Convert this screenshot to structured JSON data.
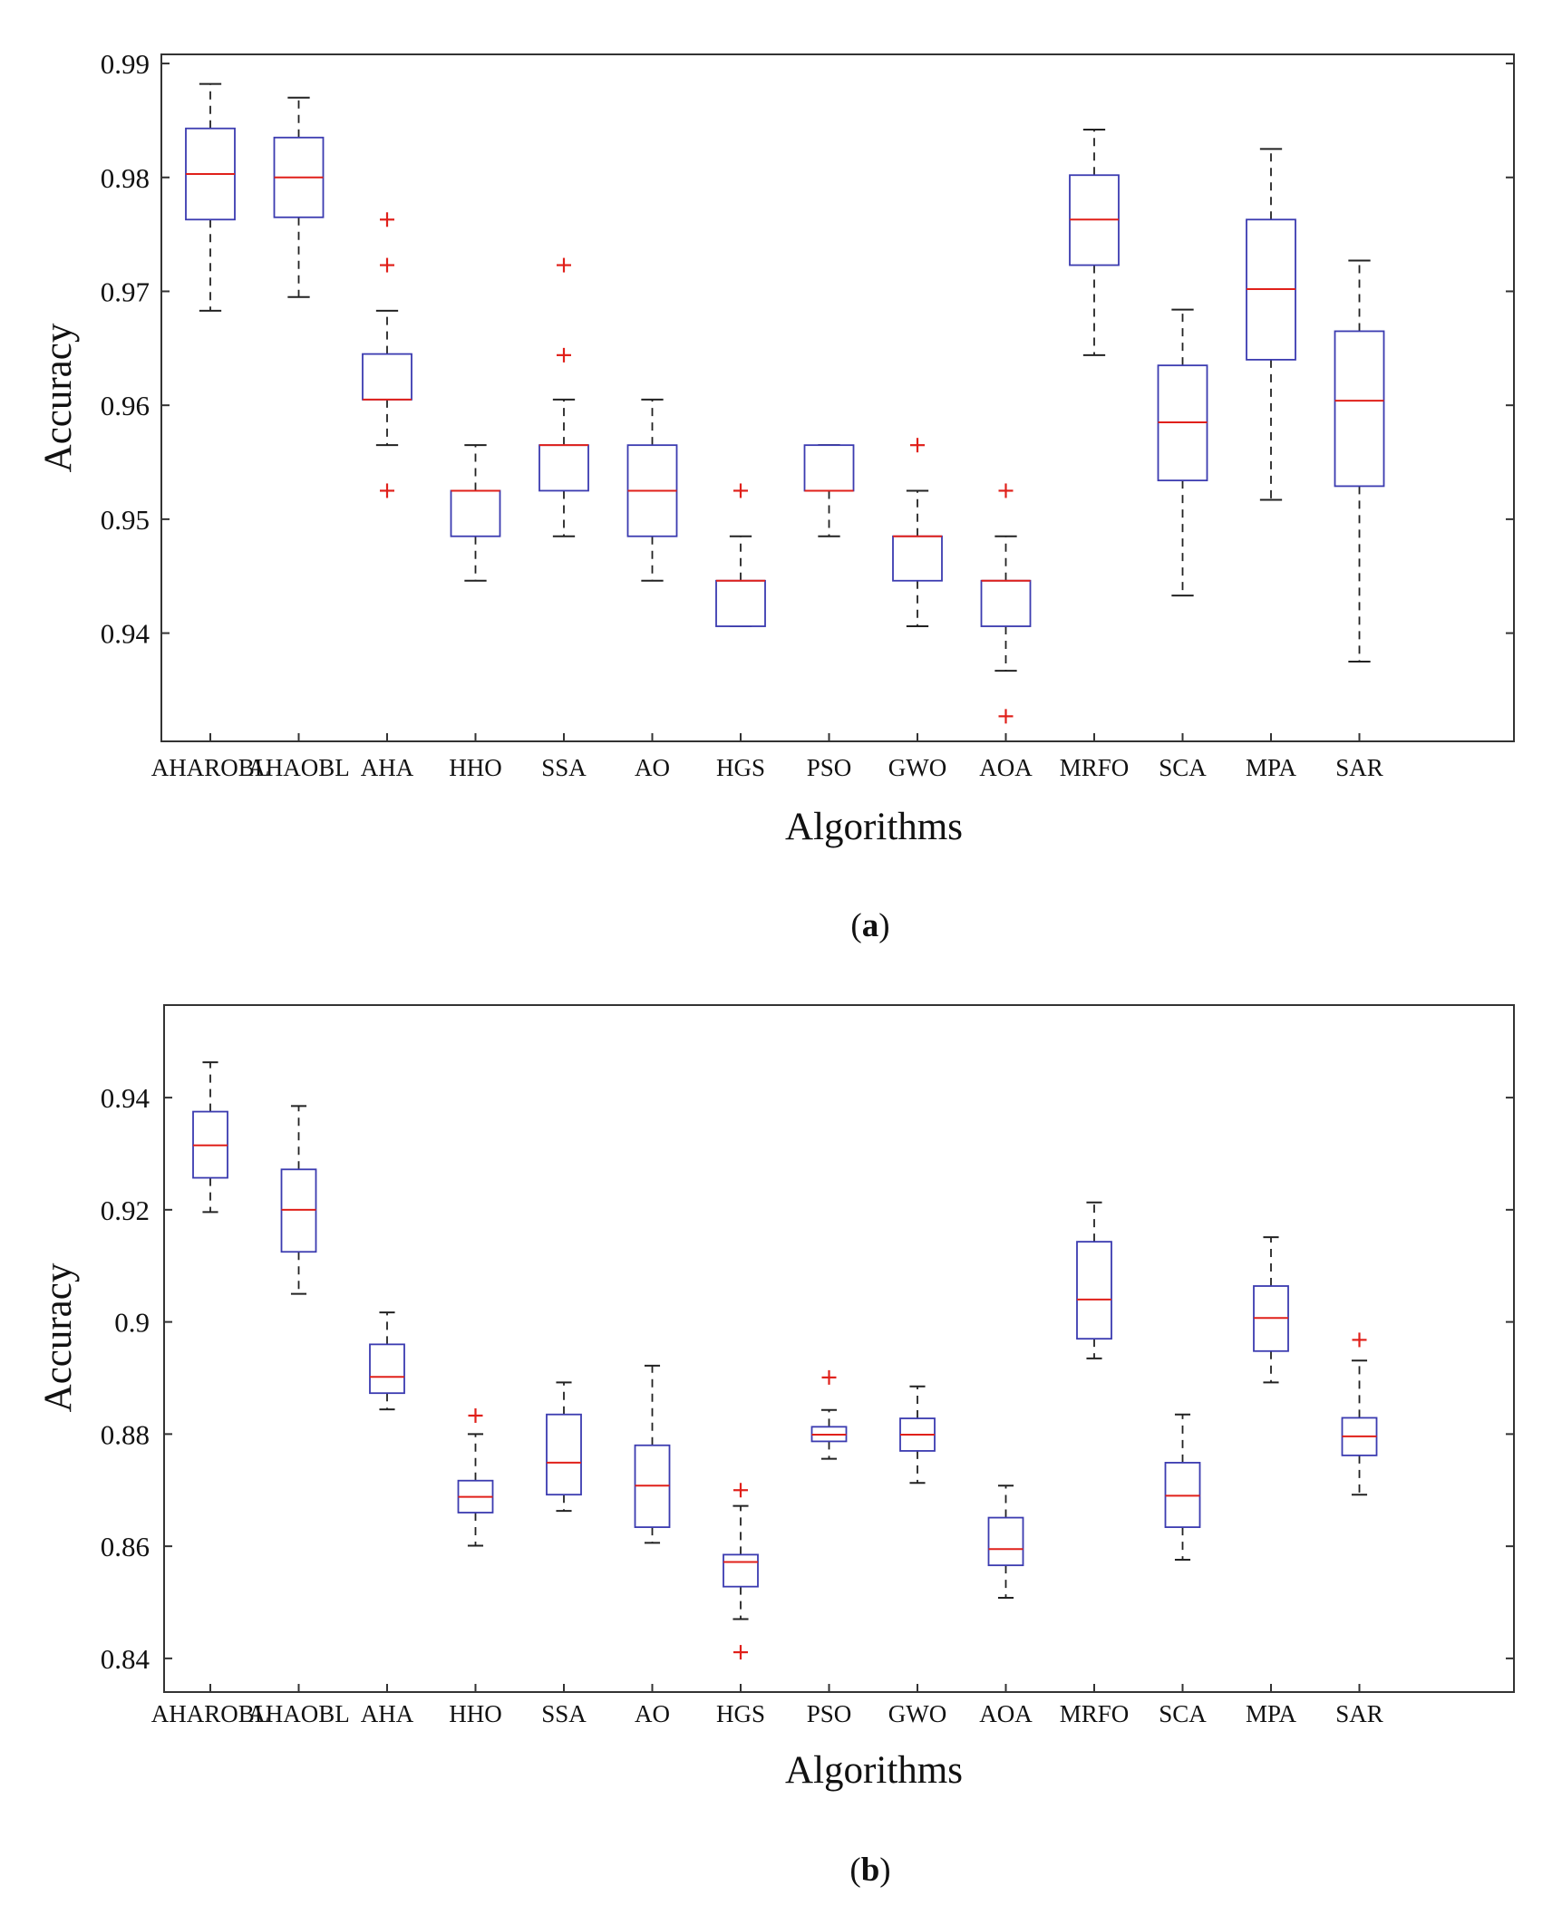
{
  "colors": {
    "box": "#3b3bb0",
    "median": "#e0201a",
    "whisker": "#222222",
    "outlier": "#e0201a",
    "axis": "#333333"
  },
  "chart_data": [
    {
      "type": "boxplot",
      "panel": "a",
      "caption_letter": "a",
      "xlabel": "Algorithms",
      "ylabel": "Accuracy",
      "ylim": [
        0.9305,
        0.9908
      ],
      "yticks": [
        0.94,
        0.95,
        0.96,
        0.97,
        0.98,
        0.99
      ],
      "ytick_labels": [
        "0.94",
        "0.95",
        "0.96",
        "0.97",
        "0.98",
        "0.99"
      ],
      "categories": [
        "AHAROBL",
        "AHAOBL",
        "AHA",
        "HHO",
        "SSA",
        "AO",
        "HGS",
        "PSO",
        "GWO",
        "AOA",
        "MRFO",
        "SCA",
        "MPA",
        "SAR"
      ],
      "boxes": [
        {
          "q1": 0.9763,
          "median": 0.9803,
          "q3": 0.9843,
          "whisker_low": 0.9683,
          "whisker_high": 0.9882,
          "outliers": []
        },
        {
          "q1": 0.9765,
          "median": 0.98,
          "q3": 0.9835,
          "whisker_low": 0.9695,
          "whisker_high": 0.987,
          "outliers": []
        },
        {
          "q1": 0.9605,
          "median": 0.9605,
          "q3": 0.9645,
          "whisker_low": 0.9565,
          "whisker_high": 0.9683,
          "outliers": [
            0.9763,
            0.9723,
            0.9525
          ]
        },
        {
          "q1": 0.9485,
          "median": 0.9525,
          "q3": 0.9525,
          "whisker_low": 0.9446,
          "whisker_high": 0.9565,
          "outliers": []
        },
        {
          "q1": 0.9525,
          "median": 0.9565,
          "q3": 0.9565,
          "whisker_low": 0.9485,
          "whisker_high": 0.9605,
          "outliers": [
            0.9723,
            0.9644
          ]
        },
        {
          "q1": 0.9485,
          "median": 0.9525,
          "q3": 0.9565,
          "whisker_low": 0.9446,
          "whisker_high": 0.9605,
          "outliers": []
        },
        {
          "q1": 0.9406,
          "median": 0.9446,
          "q3": 0.9446,
          "whisker_low": 0.9406,
          "whisker_high": 0.9485,
          "outliers": [
            0.9525
          ]
        },
        {
          "q1": 0.9525,
          "median": 0.9525,
          "q3": 0.9565,
          "whisker_low": 0.9485,
          "whisker_high": 0.9565,
          "outliers": []
        },
        {
          "q1": 0.9446,
          "median": 0.9485,
          "q3": 0.9485,
          "whisker_low": 0.9406,
          "whisker_high": 0.9525,
          "outliers": [
            0.9565
          ]
        },
        {
          "q1": 0.9406,
          "median": 0.9446,
          "q3": 0.9446,
          "whisker_low": 0.9367,
          "whisker_high": 0.9485,
          "outliers": [
            0.9525,
            0.9327
          ]
        },
        {
          "q1": 0.9723,
          "median": 0.9763,
          "q3": 0.9802,
          "whisker_low": 0.9644,
          "whisker_high": 0.9842,
          "outliers": []
        },
        {
          "q1": 0.9534,
          "median": 0.9585,
          "q3": 0.9635,
          "whisker_low": 0.9433,
          "whisker_high": 0.9684,
          "outliers": []
        },
        {
          "q1": 0.964,
          "median": 0.9702,
          "q3": 0.9763,
          "whisker_low": 0.9517,
          "whisker_high": 0.9825,
          "outliers": []
        },
        {
          "q1": 0.9529,
          "median": 0.9604,
          "q3": 0.9665,
          "whisker_low": 0.9375,
          "whisker_high": 0.9727,
          "outliers": []
        }
      ]
    },
    {
      "type": "boxplot",
      "panel": "b",
      "caption_letter": "b",
      "xlabel": "Algorithms",
      "ylabel": "Accuracy",
      "ylim": [
        0.834,
        0.9565
      ],
      "yticks": [
        0.84,
        0.86,
        0.88,
        0.9,
        0.92,
        0.94
      ],
      "ytick_labels": [
        "0.84",
        "0.86",
        "0.88",
        "0.9",
        "0.92",
        "0.94"
      ],
      "categories": [
        "AHAROBL",
        "AHAOBL",
        "AHA",
        "HHO",
        "SSA",
        "AO",
        "HGS",
        "PSO",
        "GWO",
        "AOA",
        "MRFO",
        "SCA",
        "MPA",
        "SAR"
      ],
      "boxes": [
        {
          "q1": 0.9257,
          "median": 0.9315,
          "q3": 0.9375,
          "whisker_low": 0.9196,
          "whisker_high": 0.9463,
          "outliers": []
        },
        {
          "q1": 0.9125,
          "median": 0.92,
          "q3": 0.9272,
          "whisker_low": 0.905,
          "whisker_high": 0.9385,
          "outliers": []
        },
        {
          "q1": 0.8873,
          "median": 0.8902,
          "q3": 0.896,
          "whisker_low": 0.8844,
          "whisker_high": 0.9017,
          "outliers": []
        },
        {
          "q1": 0.866,
          "median": 0.8688,
          "q3": 0.8717,
          "whisker_low": 0.8601,
          "whisker_high": 0.88,
          "outliers": [
            0.8833
          ]
        },
        {
          "q1": 0.8692,
          "median": 0.8749,
          "q3": 0.8835,
          "whisker_low": 0.8663,
          "whisker_high": 0.8892,
          "outliers": []
        },
        {
          "q1": 0.8634,
          "median": 0.8708,
          "q3": 0.878,
          "whisker_low": 0.8606,
          "whisker_high": 0.8922,
          "outliers": []
        },
        {
          "q1": 0.8528,
          "median": 0.8572,
          "q3": 0.8585,
          "whisker_low": 0.847,
          "whisker_high": 0.8672,
          "outliers": [
            0.87,
            0.8411
          ]
        },
        {
          "q1": 0.8787,
          "median": 0.8799,
          "q3": 0.8813,
          "whisker_low": 0.8756,
          "whisker_high": 0.8843,
          "outliers": [
            0.8901
          ]
        },
        {
          "q1": 0.877,
          "median": 0.8799,
          "q3": 0.8828,
          "whisker_low": 0.8713,
          "whisker_high": 0.8885,
          "outliers": []
        },
        {
          "q1": 0.8566,
          "median": 0.8595,
          "q3": 0.8651,
          "whisker_low": 0.8508,
          "whisker_high": 0.8708,
          "outliers": []
        },
        {
          "q1": 0.897,
          "median": 0.904,
          "q3": 0.9143,
          "whisker_low": 0.8935,
          "whisker_high": 0.9213,
          "outliers": []
        },
        {
          "q1": 0.8634,
          "median": 0.869,
          "q3": 0.8749,
          "whisker_low": 0.8576,
          "whisker_high": 0.8835,
          "outliers": []
        },
        {
          "q1": 0.8948,
          "median": 0.9007,
          "q3": 0.9064,
          "whisker_low": 0.8892,
          "whisker_high": 0.9151,
          "outliers": []
        },
        {
          "q1": 0.8762,
          "median": 0.8796,
          "q3": 0.8829,
          "whisker_low": 0.8692,
          "whisker_high": 0.8931,
          "outliers": [
            0.8968
          ]
        }
      ]
    }
  ]
}
